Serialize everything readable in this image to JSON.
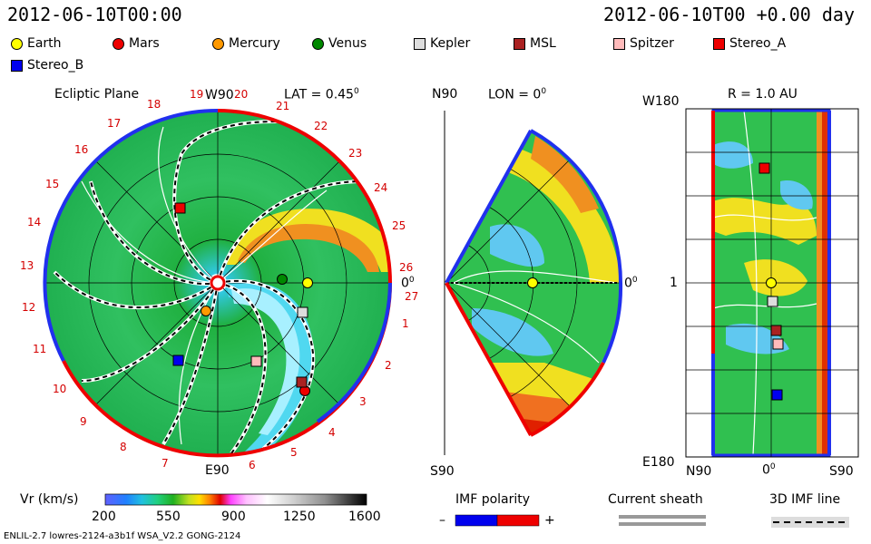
{
  "header": {
    "timestamp_left": "2012-06-10T00:00",
    "timestamp_right": "2012-06-10T00 +0.00 day"
  },
  "legend": [
    {
      "label": "Earth",
      "shape": "circle",
      "color": "#ffff00"
    },
    {
      "label": "Mars",
      "shape": "circle",
      "color": "#ee0000"
    },
    {
      "label": "Mercury",
      "shape": "circle",
      "color": "#ff9900"
    },
    {
      "label": "Venus",
      "shape": "circle",
      "color": "#008800"
    },
    {
      "label": "Kepler",
      "shape": "square",
      "color": "#dddddd"
    },
    {
      "label": "MSL",
      "shape": "square",
      "color": "#aa2222"
    },
    {
      "label": "Spitzer",
      "shape": "square",
      "color": "#ffbbbb"
    },
    {
      "label": "Stereo_A",
      "shape": "square",
      "color": "#ee0000"
    },
    {
      "label": "Stereo_B",
      "shape": "square",
      "color": "#0000ee"
    }
  ],
  "ecliptic": {
    "title": "Ecliptic Plane",
    "top_label": "W90",
    "bottom_label": "E90",
    "right_label": "0",
    "lat_label": "LAT = 0.45",
    "sector_numbers": [
      "1",
      "2",
      "3",
      "4",
      "5",
      "6",
      "7",
      "8",
      "9",
      "10",
      "11",
      "12",
      "13",
      "14",
      "15",
      "16",
      "17",
      "18",
      "19",
      "20",
      "21",
      "22",
      "23",
      "24",
      "25",
      "26",
      "27"
    ]
  },
  "meridional": {
    "top_label": "N90",
    "bottom_label": "S90",
    "right_label": "0",
    "lon_label": "LON = 0"
  },
  "lonlat": {
    "top_left_label": "W180",
    "bottom_left_label": "E180",
    "mid_left_label": "1",
    "title": "R = 1.0 AU",
    "bottom_labels": [
      "N90",
      "0",
      "S90"
    ]
  },
  "colorbar": {
    "label": "Vr (km/s)",
    "ticks": [
      "200",
      "550",
      "900",
      "1250",
      "1600"
    ]
  },
  "imf": {
    "title": "IMF polarity",
    "minus": "–",
    "plus": "+",
    "neg_color": "#0000ee",
    "pos_color": "#ee0000"
  },
  "sheath": {
    "title": "Current sheath"
  },
  "imf3d": {
    "title": "3D IMF line"
  },
  "footer": {
    "model_info": "ENLIL-2.7 lowres-2124-a3b1f WSA_V2.2 GONG-2124"
  }
}
